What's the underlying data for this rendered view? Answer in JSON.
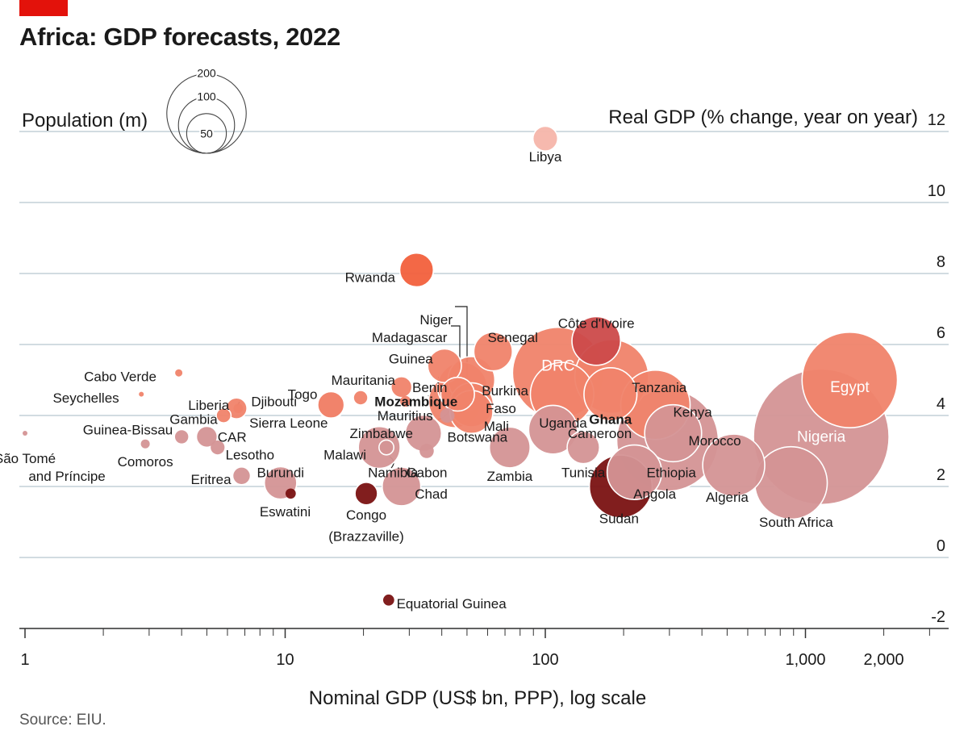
{
  "title": "Africa: GDP forecasts, 2022",
  "source": "Source: EIU.",
  "legend": {
    "title": "Population (m)",
    "sizes": [
      200,
      100,
      50
    ]
  },
  "colors": {
    "scale": [
      "#7a1212",
      "#cc4a4a",
      "#f2603c",
      "#f0836a",
      "#d49395",
      "#f5b5aa"
    ],
    "grid": "#b7c6cf",
    "axis": "#333333"
  },
  "chart_data": {
    "type": "scatter",
    "title": "Africa: GDP forecasts, 2022",
    "ylabel": "Real GDP (% change, year on year)",
    "xlabel": "Nominal GDP (US$ bn, PPP), log scale",
    "xscale": "log",
    "xlim": [
      1,
      3000
    ],
    "ylim": [
      -2.4,
      12
    ],
    "yticks": [
      -2,
      0,
      2,
      4,
      6,
      8,
      10,
      12
    ],
    "xticks": [
      1,
      10,
      100,
      1000,
      2000
    ],
    "xtick_labels": [
      "1",
      "10",
      "100",
      "1,000",
      "2,000"
    ],
    "size_variable": "Population (m)",
    "points": [
      {
        "name": "Libya",
        "gdp": 100,
        "growth": 11.8,
        "pop": 7,
        "color": "#f5b5aa"
      },
      {
        "name": "Rwanda",
        "gdp": 32,
        "growth": 8.1,
        "pop": 13,
        "color": "#f2603c"
      },
      {
        "name": "Côte d'Ivoire",
        "gdp": 157,
        "growth": 6.1,
        "pop": 27,
        "color": "#cc4a4a"
      },
      {
        "name": "Senegal",
        "gdp": 63,
        "growth": 5.8,
        "pop": 17,
        "color": "#f0836a"
      },
      {
        "name": "Niger",
        "gdp": 52,
        "growth": 5.0,
        "pop": 25,
        "color": "#f0836a"
      },
      {
        "name": "Madagascar",
        "gdp": 48,
        "growth": 4.8,
        "pop": 28,
        "color": "#f0836a"
      },
      {
        "name": "Guinea",
        "gdp": 41,
        "growth": 5.4,
        "pop": 13,
        "color": "#f0836a"
      },
      {
        "name": "Benin",
        "gdp": 46,
        "growth": 4.6,
        "pop": 13,
        "color": "#f0836a"
      },
      {
        "name": "Mozambique",
        "gdp": 45,
        "growth": 4.4,
        "pop": 32,
        "color": "#f0836a"
      },
      {
        "name": "Burkina Faso",
        "gdp": 52,
        "growth": 4.3,
        "pop": 22,
        "color": "#f0836a"
      },
      {
        "name": "Mali",
        "gdp": 52,
        "growth": 4.1,
        "pop": 21,
        "color": "#f0836a"
      },
      {
        "name": "Mauritania",
        "gdp": 28,
        "growth": 4.8,
        "pop": 5,
        "color": "#f0836a"
      },
      {
        "name": "Togo",
        "gdp": 15,
        "growth": 4.3,
        "pop": 9,
        "color": "#f0836a"
      },
      {
        "name": "Sierra Leone",
        "gdp": 15,
        "growth": 4.3,
        "pop": 8,
        "color": "#f0836a"
      },
      {
        "name": "Mauritius",
        "gdp": 29,
        "growth": 4.4,
        "pop": 1.3,
        "color": "#f0836a"
      },
      {
        "name": "Guinea-Bissau",
        "gdp": 19.5,
        "growth": 4.5,
        "pop": 2,
        "color": "#f0836a"
      },
      {
        "name": "Cabo Verde",
        "gdp": 3.9,
        "growth": 5.2,
        "pop": 0.6,
        "color": "#f0836a"
      },
      {
        "name": "Seychelles",
        "gdp": 2.8,
        "growth": 4.6,
        "pop": 0.1,
        "color": "#f0836a"
      },
      {
        "name": "Djibouti",
        "gdp": 6.6,
        "growth": 4.2,
        "pop": 1,
        "color": "#f0836a"
      },
      {
        "name": "Liberia",
        "gdp": 6.5,
        "growth": 4.2,
        "pop": 5,
        "color": "#f0836a"
      },
      {
        "name": "Gambia",
        "gdp": 5.8,
        "growth": 4.0,
        "pop": 2.5,
        "color": "#f0836a"
      },
      {
        "name": "DRC",
        "gdp": 112,
        "growth": 5.2,
        "pop": 95,
        "color": "#f0836a"
      },
      {
        "name": "Uganda",
        "gdp": 116,
        "growth": 4.6,
        "pop": 46,
        "color": "#f0836a"
      },
      {
        "name": "Tanzania",
        "gdp": 180,
        "growth": 5.1,
        "pop": 62,
        "color": "#f0836a"
      },
      {
        "name": "Ghana",
        "gdp": 178,
        "growth": 4.6,
        "pop": 32,
        "color": "#f0836a"
      },
      {
        "name": "Kenya",
        "gdp": 265,
        "growth": 4.3,
        "pop": 55,
        "color": "#f0836a"
      },
      {
        "name": "Egypt",
        "gdp": 1480,
        "growth": 5.0,
        "pop": 104,
        "color": "#f0836a"
      },
      {
        "name": "Nigeria",
        "gdp": 1150,
        "growth": 3.4,
        "pop": 210,
        "color": "#d49395"
      },
      {
        "name": "South Africa",
        "gdp": 880,
        "growth": 2.1,
        "pop": 60,
        "color": "#d49395"
      },
      {
        "name": "Algeria",
        "gdp": 530,
        "growth": 2.6,
        "pop": 44,
        "color": "#d49395"
      },
      {
        "name": "Ethiopia",
        "gdp": 295,
        "growth": 3.3,
        "pop": 118,
        "color": "#d49395"
      },
      {
        "name": "Morocco",
        "gdp": 310,
        "growth": 3.5,
        "pop": 37,
        "color": "#d49395"
      },
      {
        "name": "Angola",
        "gdp": 220,
        "growth": 2.4,
        "pop": 34,
        "color": "#d49395"
      },
      {
        "name": "Sudan",
        "gdp": 195,
        "growth": 2.0,
        "pop": 45,
        "color": "#7a1212"
      },
      {
        "name": "Cameroon",
        "gdp": 107,
        "growth": 3.6,
        "pop": 27,
        "color": "#d49395"
      },
      {
        "name": "Tunisia",
        "gdp": 140,
        "growth": 3.1,
        "pop": 12,
        "color": "#d49395"
      },
      {
        "name": "Zambia",
        "gdp": 73,
        "growth": 3.1,
        "pop": 19,
        "color": "#d49395"
      },
      {
        "name": "Zimbabwe",
        "gdp": 34,
        "growth": 3.5,
        "pop": 15,
        "color": "#d49395"
      },
      {
        "name": "Malawi",
        "gdp": 23,
        "growth": 3.1,
        "pop": 20,
        "color": "#d49395"
      },
      {
        "name": "Namibia",
        "gdp": 24.5,
        "growth": 3.1,
        "pop": 2.5,
        "color": "#d49395"
      },
      {
        "name": "Gabon",
        "gdp": 35,
        "growth": 3.0,
        "pop": 2.3,
        "color": "#d49395"
      },
      {
        "name": "Botswana",
        "gdp": 42,
        "growth": 4.0,
        "pop": 2.4,
        "color": "#d49395"
      },
      {
        "name": "Chad",
        "gdp": 28,
        "growth": 2.0,
        "pop": 17,
        "color": "#d49395"
      },
      {
        "name": "Burundi",
        "gdp": 9.6,
        "growth": 2.1,
        "pop": 12,
        "color": "#d49395"
      },
      {
        "name": "CAR",
        "gdp": 5,
        "growth": 3.4,
        "pop": 5,
        "color": "#d49395"
      },
      {
        "name": "Lesotho",
        "gdp": 5.5,
        "growth": 3.1,
        "pop": 2.2,
        "color": "#d49395"
      },
      {
        "name": "Eritrea",
        "gdp": 6.8,
        "growth": 2.3,
        "pop": 3.6,
        "color": "#d49395"
      },
      {
        "name": "Guinea-Bissau",
        "gdp": 4,
        "growth": 3.4,
        "pop": 2,
        "color": "#d49395"
      },
      {
        "name": "Comoros",
        "gdp": 2.9,
        "growth": 3.2,
        "pop": 0.9,
        "color": "#d49395"
      },
      {
        "name": "São Tomé and Príncipe",
        "gdp": 1,
        "growth": 3.5,
        "pop": 0.2,
        "color": "#d49395"
      },
      {
        "name": "Eswatini",
        "gdp": 10.5,
        "growth": 1.8,
        "pop": 1.2,
        "color": "#7a1212"
      },
      {
        "name": "Congo (Brazzaville)",
        "gdp": 20.5,
        "growth": 1.8,
        "pop": 5.8,
        "color": "#7a1212"
      },
      {
        "name": "Equatorial Guinea",
        "gdp": 25,
        "growth": -1.2,
        "pop": 1.4,
        "color": "#7a1212"
      }
    ],
    "labels": [
      {
        "text": "Libya",
        "gdp": 100,
        "growth": 11.3,
        "anchor": "middle"
      },
      {
        "text": "Rwanda",
        "gdp": 26.5,
        "growth": 7.9,
        "anchor": "end"
      },
      {
        "text": "Côte d'Ivoire",
        "gdp": 157,
        "growth": 6.6,
        "anchor": "middle"
      },
      {
        "text": "Senegal",
        "gdp": 60,
        "growth": 6.2,
        "anchor": "start"
      },
      {
        "text": "Niger",
        "gdp": 44,
        "growth": 6.7,
        "anchor": "end"
      },
      {
        "text": "Madagascar",
        "gdp": 42,
        "growth": 6.2,
        "anchor": "end"
      },
      {
        "text": "Guinea",
        "gdp": 37,
        "growth": 5.6,
        "anchor": "end"
      },
      {
        "text": "Mauritania",
        "gdp": 26.5,
        "growth": 5.0,
        "anchor": "end"
      },
      {
        "text": "Benin",
        "gdp": 42,
        "growth": 4.8,
        "anchor": "end"
      },
      {
        "text": "Burkina",
        "gdp": 57,
        "growth": 4.7,
        "anchor": "start"
      },
      {
        "text": "Faso",
        "gdp": 59,
        "growth": 4.2,
        "anchor": "start"
      },
      {
        "text": "Togo",
        "gdp": 13.3,
        "growth": 4.6,
        "anchor": "end"
      },
      {
        "text": "Mozambique",
        "gdp": 46,
        "growth": 4.4,
        "anchor": "end",
        "bold": true
      },
      {
        "text": "Mauritius",
        "gdp": 37,
        "growth": 4.0,
        "anchor": "end"
      },
      {
        "text": "Mali",
        "gdp": 58,
        "growth": 3.7,
        "anchor": "start"
      },
      {
        "text": "Sierra Leone",
        "gdp": 14.6,
        "growth": 3.8,
        "anchor": "end"
      },
      {
        "text": "Botswana",
        "gdp": 42,
        "growth": 3.4,
        "anchor": "start"
      },
      {
        "text": "Zimbabwe",
        "gdp": 31,
        "growth": 3.5,
        "anchor": "end"
      },
      {
        "text": "Malawi",
        "gdp": 20.5,
        "growth": 2.9,
        "anchor": "end"
      },
      {
        "text": "Namibia",
        "gdp": 20.8,
        "growth": 2.4,
        "anchor": "start"
      },
      {
        "text": "Gabon",
        "gdp": 35,
        "growth": 2.4,
        "anchor": "middle"
      },
      {
        "text": "Chad",
        "gdp": 31.5,
        "growth": 1.8,
        "anchor": "start"
      },
      {
        "text": "Zambia",
        "gdp": 73,
        "growth": 2.3,
        "anchor": "middle"
      },
      {
        "text": "Uganda",
        "gdp": 117,
        "growth": 3.8,
        "anchor": "middle"
      },
      {
        "text": "DRC",
        "gdp": 112,
        "growth": 5.4,
        "anchor": "middle",
        "white": true
      },
      {
        "text": "Tanzania",
        "gdp": 215,
        "growth": 4.8,
        "anchor": "start"
      },
      {
        "text": "Ghana",
        "gdp": 178,
        "growth": 3.9,
        "anchor": "middle",
        "bold": true
      },
      {
        "text": "Cameroon",
        "gdp": 122,
        "growth": 3.5,
        "anchor": "start"
      },
      {
        "text": "Kenya",
        "gdp": 310,
        "growth": 4.1,
        "anchor": "start"
      },
      {
        "text": "Tunisia",
        "gdp": 140,
        "growth": 2.4,
        "anchor": "middle"
      },
      {
        "text": "Morocco",
        "gdp": 355,
        "growth": 3.3,
        "anchor": "start"
      },
      {
        "text": "Ethiopia",
        "gdp": 305,
        "growth": 2.4,
        "anchor": "middle"
      },
      {
        "text": "Angola",
        "gdp": 218,
        "growth": 1.8,
        "anchor": "start"
      },
      {
        "text": "Sudan",
        "gdp": 192,
        "growth": 1.1,
        "anchor": "middle"
      },
      {
        "text": "Algeria",
        "gdp": 500,
        "growth": 1.7,
        "anchor": "middle"
      },
      {
        "text": "South Africa",
        "gdp": 920,
        "growth": 1.0,
        "anchor": "middle"
      },
      {
        "text": "Nigeria",
        "gdp": 1150,
        "growth": 3.4,
        "anchor": "middle",
        "white": true
      },
      {
        "text": "Egypt",
        "gdp": 1480,
        "growth": 4.8,
        "anchor": "middle",
        "white": true
      },
      {
        "text": "Cabo Verde",
        "gdp": 3.2,
        "growth": 5.1,
        "anchor": "end"
      },
      {
        "text": "Seychelles",
        "gdp": 2.3,
        "growth": 4.5,
        "anchor": "end"
      },
      {
        "text": "Liberia",
        "gdp": 6.1,
        "growth": 4.3,
        "anchor": "end"
      },
      {
        "text": "Djibouti",
        "gdp": 7.4,
        "growth": 4.4,
        "anchor": "start"
      },
      {
        "text": "Gambia",
        "gdp": 5.5,
        "growth": 3.9,
        "anchor": "end"
      },
      {
        "text": "Guinea-Bissau",
        "gdp": 3.7,
        "growth": 3.6,
        "anchor": "end"
      },
      {
        "text": "CAR",
        "gdp": 5.5,
        "growth": 3.4,
        "anchor": "start"
      },
      {
        "text": "Lesotho",
        "gdp": 5.9,
        "growth": 2.9,
        "anchor": "start"
      },
      {
        "text": "Comoros",
        "gdp": 2.9,
        "growth": 2.7,
        "anchor": "middle"
      },
      {
        "text": "Eritrea",
        "gdp": 6.2,
        "growth": 2.2,
        "anchor": "end"
      },
      {
        "text": "Burundi",
        "gdp": 9.6,
        "growth": 2.4,
        "anchor": "middle"
      },
      {
        "text": "Eswatini",
        "gdp": 10,
        "growth": 1.3,
        "anchor": "middle"
      },
      {
        "text": "Congo",
        "gdp": 20.5,
        "growth": 1.2,
        "anchor": "middle"
      },
      {
        "text": "(Brazzaville)",
        "gdp": 20.5,
        "growth": 0.6,
        "anchor": "middle"
      },
      {
        "text": "São Tomé",
        "gdp": 1.0,
        "growth": 2.8,
        "anchor": "middle"
      },
      {
        "text": "and Príncipe",
        "gdp": 1.45,
        "growth": 2.3,
        "anchor": "middle"
      },
      {
        "text": "Equatorial Guinea",
        "gdp": 26.8,
        "growth": -1.3,
        "anchor": "start"
      }
    ]
  }
}
